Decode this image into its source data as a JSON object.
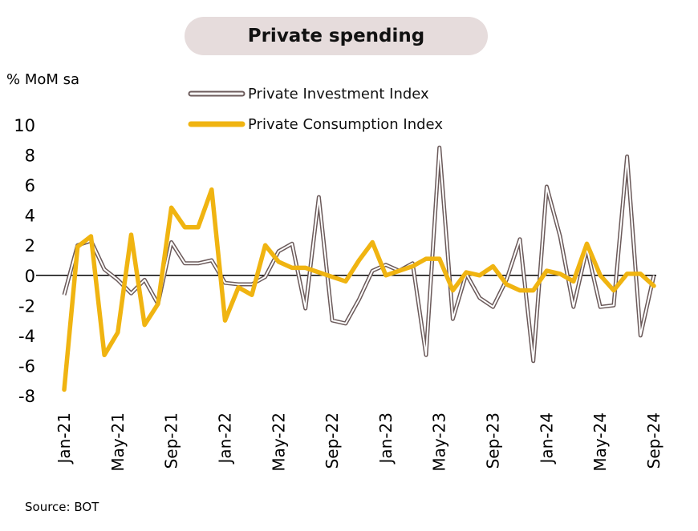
{
  "title": "Private spending",
  "unit_label": "% MoM sa",
  "source": "Source: BOT",
  "colors": {
    "investment": "#6b5a5a",
    "consumption": "#f0b411",
    "zero_line": "#000000",
    "title_bg": "#e6dcdc"
  },
  "chart_data": {
    "type": "line",
    "title": "Private spending",
    "ylabel": "% MoM sa",
    "ylim": [
      -8,
      10
    ],
    "yticks": [
      "10",
      "8",
      "6",
      "4",
      "2",
      "0",
      "-2",
      "-4",
      "-6",
      "-8"
    ],
    "ytick_values": [
      10,
      8,
      6,
      4,
      2,
      0,
      -2,
      -4,
      -6,
      -8
    ],
    "x_tick_labels": [
      "Jan-21",
      "May-21",
      "Sep-21",
      "Jan-22",
      "May-22",
      "Sep-22",
      "Jan-23",
      "May-23",
      "Sep-23",
      "Jan-24",
      "May-24",
      "Sep-24"
    ],
    "x": [
      "Jan-21",
      "Feb-21",
      "Mar-21",
      "Apr-21",
      "May-21",
      "Jun-21",
      "Jul-21",
      "Aug-21",
      "Sep-21",
      "Oct-21",
      "Nov-21",
      "Dec-21",
      "Jan-22",
      "Feb-22",
      "Mar-22",
      "Apr-22",
      "May-22",
      "Jun-22",
      "Jul-22",
      "Aug-22",
      "Sep-22",
      "Oct-22",
      "Nov-22",
      "Dec-22",
      "Jan-23",
      "Feb-23",
      "Mar-23",
      "Apr-23",
      "May-23",
      "Jun-23",
      "Jul-23",
      "Aug-23",
      "Sep-23",
      "Oct-23",
      "Nov-23",
      "Dec-23",
      "Jan-24",
      "Feb-24",
      "Mar-24",
      "Apr-24",
      "May-24",
      "Jun-24",
      "Jul-24",
      "Aug-24",
      "Sep-24"
    ],
    "legend_position": "top",
    "series": [
      {
        "name": "Private Investment Index",
        "style": "outlined",
        "values": [
          -1.3,
          2.0,
          2.3,
          0.4,
          -0.3,
          -1.2,
          -0.3,
          -1.9,
          2.2,
          0.8,
          0.8,
          1.0,
          -0.5,
          -0.6,
          -0.6,
          -0.1,
          1.6,
          2.1,
          -2.2,
          5.2,
          -3.0,
          -3.2,
          -1.6,
          0.3,
          0.7,
          0.3,
          0.8,
          -5.3,
          8.5,
          -2.9,
          0.1,
          -1.5,
          -2.1,
          -0.3,
          2.4,
          -5.7,
          5.9,
          2.6,
          -2.1,
          1.8,
          -2.1,
          -2.0,
          7.9,
          -4.0,
          0.0
        ]
      },
      {
        "name": "Private Consumption Index",
        "style": "solid",
        "values": [
          -7.6,
          1.9,
          2.6,
          -5.3,
          -3.8,
          2.7,
          -3.3,
          -1.9,
          4.5,
          3.2,
          3.2,
          5.7,
          -3.0,
          -0.8,
          -1.3,
          2.0,
          0.9,
          0.5,
          0.5,
          0.2,
          -0.1,
          -0.4,
          1.0,
          2.2,
          0.0,
          0.3,
          0.6,
          1.1,
          1.1,
          -1.0,
          0.2,
          0.0,
          0.6,
          -0.6,
          -1.0,
          -1.0,
          0.3,
          0.1,
          -0.4,
          2.1,
          0.0,
          -1.0,
          0.1,
          0.1,
          -0.7
        ]
      }
    ]
  }
}
